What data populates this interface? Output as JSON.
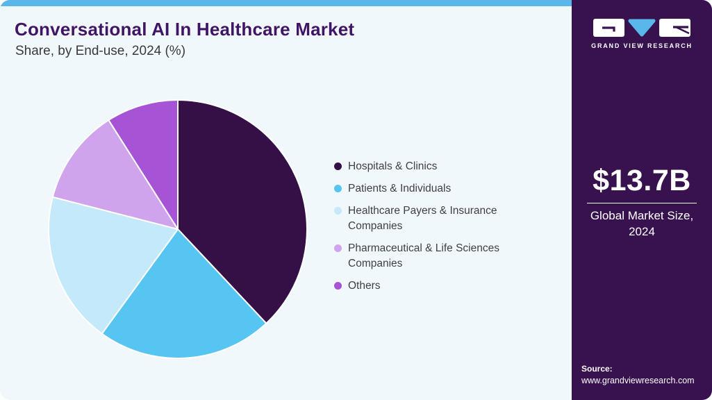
{
  "header": {
    "title": "Conversational AI In Healthcare Market",
    "subtitle": "Share, by End-use, 2024 (%)"
  },
  "chart_data": {
    "type": "pie",
    "title": "Conversational AI In Healthcare Market Share, by End-use, 2024 (%)",
    "unit": "%",
    "direction": "clockwise",
    "start_angle_deg": 0,
    "legend_position": "right",
    "series": [
      {
        "label": "Hospitals & Clinics",
        "value": 38,
        "color": "#351047"
      },
      {
        "label": "Patients & Individuals",
        "value": 22,
        "color": "#56c5f2"
      },
      {
        "label": "Healthcare Payers & Insurance Companies",
        "value": 19,
        "color": "#c3e9fa"
      },
      {
        "label": "Pharmaceutical & Life Sciences Companies",
        "value": 12,
        "color": "#cfa4ec"
      },
      {
        "label": "Others",
        "value": 9,
        "color": "#a653d6"
      }
    ]
  },
  "sidebar": {
    "logo_caption": "GRAND VIEW RESEARCH",
    "market_size": {
      "value": "$13.7B",
      "label_line1": "Global Market Size,",
      "label_line2": "2024"
    },
    "source": {
      "label": "Source:",
      "url": "www.grandviewresearch.com"
    }
  },
  "colors": {
    "accent_blue": "#5ab7e9",
    "sidebar_purple": "#38124e",
    "title_purple": "#411566",
    "panel_background": "#f1f8fb"
  }
}
